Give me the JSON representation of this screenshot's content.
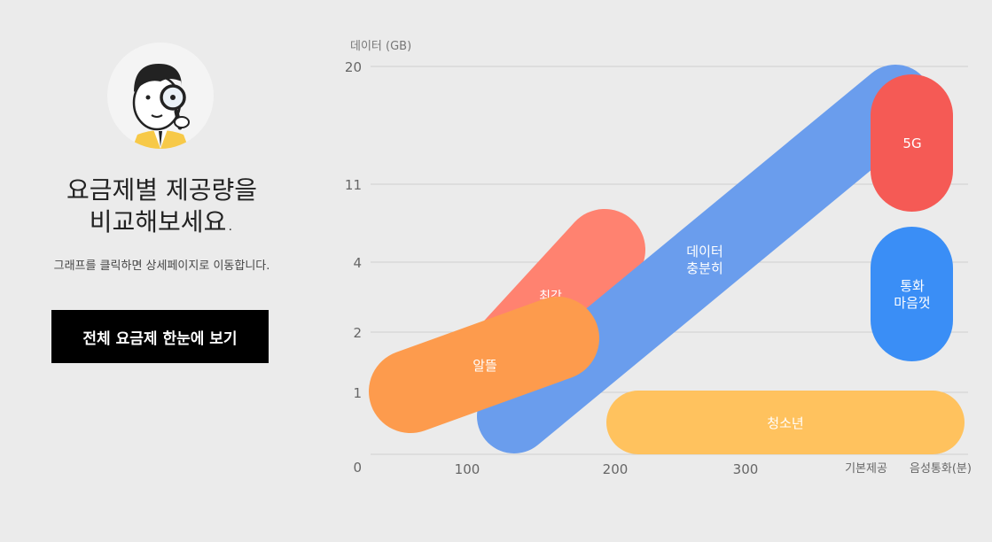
{
  "headline": {
    "line1": "요금제별 제공량을",
    "line2": "비교해보세요."
  },
  "subtext": "그래프를 클릭하면 상세페이지로 이동합니다.",
  "cta_label": "전체 요금제 한눈에 보기",
  "chart": {
    "y_axis_label": "데이터 (GB)",
    "y_ticks": [
      "20",
      "11",
      "4",
      "2",
      "1",
      "0"
    ],
    "x_ticks": [
      "100",
      "200",
      "300",
      "기본제공",
      "음성통화(분)"
    ],
    "plans": {
      "choegang": {
        "label": "최강",
        "color": "#ff8270"
      },
      "data": {
        "line1": "데이터",
        "line2": "충분히",
        "color": "#6a9ded"
      },
      "fiveg": {
        "label": "5G",
        "color": "#f55a55"
      },
      "call": {
        "line1": "통화",
        "line2": "마음껏",
        "color": "#3a8ef6"
      },
      "altteul": {
        "label": "알뜰",
        "color": "#fd9b4d"
      },
      "youth": {
        "label": "청소년",
        "color": "#ffc25e"
      }
    }
  }
}
